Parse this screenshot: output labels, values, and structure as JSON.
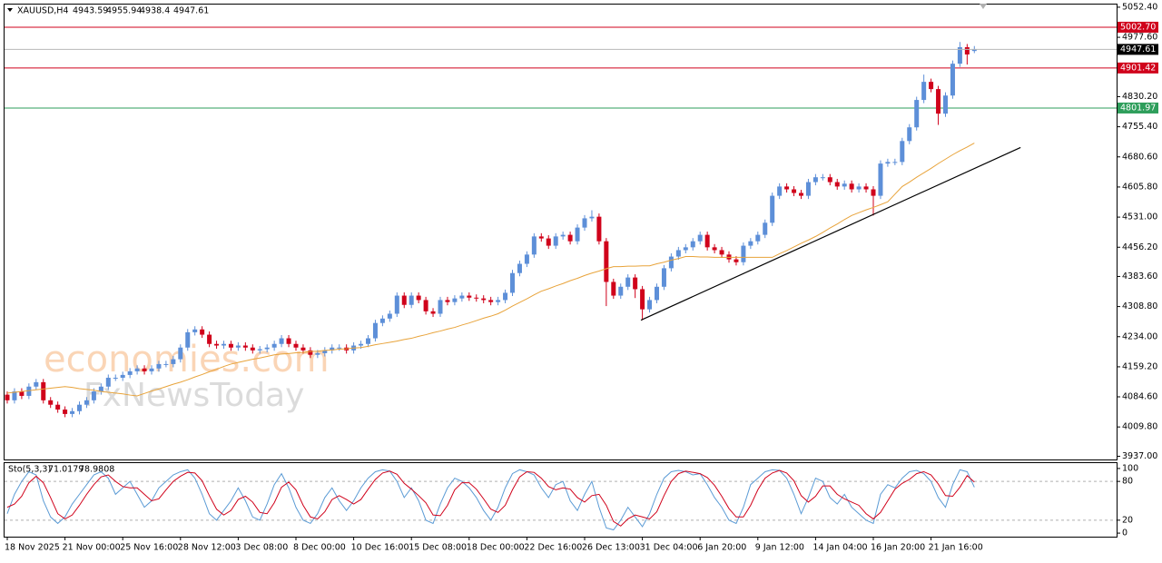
{
  "chart_data": [
    {
      "type": "candlestick",
      "title": "XAUUSD,H4",
      "categories": [
        "18 Nov 2025",
        null,
        null,
        null,
        null,
        null,
        null,
        null,
        "21 Nov 00:00",
        null,
        null,
        null,
        null,
        null,
        null,
        null,
        "25 Nov 16:00",
        null,
        null,
        null,
        null,
        null,
        null,
        null,
        "28 Nov 12:00",
        null,
        null,
        null,
        null,
        null,
        null,
        null,
        "3 Dec 08:00",
        null,
        null,
        null,
        null,
        null,
        null,
        null,
        "8 Dec 00:00",
        null,
        null,
        null,
        null,
        null,
        null,
        null,
        "10 Dec 16:00",
        null,
        null,
        null,
        null,
        null,
        null,
        null,
        "15 Dec 08:00",
        null,
        null,
        null,
        null,
        null,
        null,
        null,
        "18 Dec 00:00",
        null,
        null,
        null,
        null,
        null,
        null,
        null,
        "22 Dec 16:00",
        null,
        null,
        null,
        null,
        null,
        null,
        null,
        "26 Dec 13:00",
        null,
        null,
        null,
        null,
        null,
        null,
        null,
        "31 Dec 04:00",
        null,
        null,
        null,
        null,
        null,
        null,
        null,
        "6 Jan 20:00",
        null,
        null,
        null,
        null,
        null,
        null,
        null,
        "9 Jan 12:00",
        null,
        null,
        null,
        null,
        null,
        null,
        null,
        "14 Jan 04:00",
        null,
        null,
        null,
        null,
        null,
        null,
        null,
        "16 Jan 20:00",
        null,
        null,
        null,
        null,
        null,
        null,
        null,
        "21 Jan 16:00",
        null,
        null,
        null,
        null,
        null,
        null
      ],
      "open": [
        4090,
        4076,
        4098,
        4087,
        4110,
        4121,
        4076,
        4065,
        4053,
        4042,
        4049,
        4065,
        4076,
        4098,
        4110,
        4132,
        4132,
        4139,
        4148,
        4155,
        4148,
        4155,
        4166,
        4166,
        4178,
        4207,
        4245,
        4252,
        4239,
        4216,
        4212,
        4216,
        4207,
        4212,
        4207,
        4200,
        4203,
        4207,
        4216,
        4230,
        4216,
        4207,
        4200,
        4189,
        4193,
        4200,
        4207,
        4207,
        4200,
        4212,
        4216,
        4230,
        4268,
        4279,
        4291,
        4336,
        4313,
        4336,
        4325,
        4297,
        4291,
        4325,
        4320,
        4329,
        4336,
        4331,
        4329,
        4325,
        4320,
        4325,
        4343,
        4392,
        4415,
        4438,
        4483,
        4478,
        4460,
        4483,
        4487,
        4471,
        4505,
        4528,
        4532,
        4471,
        4370,
        4336,
        4358,
        4381,
        4352,
        4302,
        4325,
        4358,
        4404,
        4433,
        4449,
        4456,
        4471,
        4487,
        4456,
        4449,
        4438,
        4426,
        4419,
        4460,
        4471,
        4487,
        4517,
        4584,
        4607,
        4600,
        4591,
        4584,
        4618,
        4630,
        4630,
        4618,
        4607,
        4614,
        4600,
        4607,
        4600,
        4584,
        4664,
        4668,
        4668,
        4720,
        4754,
        4822,
        4867,
        4849,
        4788,
        4833,
        4912,
        4953,
        4943.59
      ],
      "high": [
        4098,
        4106,
        4106,
        4118,
        4129,
        4129,
        4084,
        4073,
        4061,
        4057,
        4073,
        4084,
        4106,
        4118,
        4140,
        4140,
        4147,
        4156,
        4163,
        4163,
        4163,
        4174,
        4174,
        4186,
        4215,
        4253,
        4260,
        4260,
        4247,
        4224,
        4224,
        4224,
        4220,
        4220,
        4215,
        4211,
        4215,
        4224,
        4238,
        4238,
        4224,
        4215,
        4208,
        4201,
        4208,
        4215,
        4215,
        4215,
        4220,
        4224,
        4238,
        4276,
        4287,
        4299,
        4344,
        4344,
        4344,
        4344,
        4333,
        4305,
        4333,
        4333,
        4337,
        4344,
        4344,
        4339,
        4337,
        4333,
        4333,
        4351,
        4400,
        4423,
        4446,
        4491,
        4491,
        4486,
        4491,
        4495,
        4495,
        4513,
        4536,
        4548,
        4540,
        4479,
        4378,
        4366,
        4389,
        4389,
        4360,
        4333,
        4366,
        4412,
        4441,
        4457,
        4464,
        4479,
        4495,
        4495,
        4464,
        4457,
        4446,
        4434,
        4468,
        4479,
        4495,
        4525,
        4592,
        4615,
        4615,
        4608,
        4599,
        4626,
        4638,
        4638,
        4638,
        4626,
        4622,
        4622,
        4615,
        4615,
        4608,
        4672,
        4676,
        4676,
        4728,
        4762,
        4830,
        4885,
        4875,
        4857,
        4841,
        4920,
        4966,
        4961,
        4955.94
      ],
      "low": [
        4068,
        4068,
        4079,
        4079,
        4102,
        4068,
        4057,
        4045,
        4034,
        4034,
        4041,
        4057,
        4068,
        4090,
        4102,
        4124,
        4124,
        4131,
        4140,
        4140,
        4140,
        4147,
        4158,
        4158,
        4170,
        4199,
        4237,
        4231,
        4208,
        4204,
        4204,
        4199,
        4199,
        4199,
        4192,
        4192,
        4195,
        4199,
        4208,
        4208,
        4199,
        4192,
        4181,
        4181,
        4185,
        4192,
        4199,
        4192,
        4192,
        4204,
        4208,
        4222,
        4260,
        4271,
        4283,
        4305,
        4305,
        4317,
        4289,
        4283,
        4283,
        4312,
        4312,
        4321,
        4323,
        4321,
        4317,
        4312,
        4312,
        4317,
        4335,
        4384,
        4407,
        4430,
        4470,
        4452,
        4452,
        4475,
        4463,
        4463,
        4497,
        4520,
        4463,
        4310,
        4328,
        4328,
        4350,
        4330,
        4275,
        4294,
        4317,
        4350,
        4396,
        4425,
        4441,
        4448,
        4463,
        4448,
        4441,
        4430,
        4418,
        4411,
        4411,
        4452,
        4463,
        4479,
        4509,
        4576,
        4592,
        4583,
        4576,
        4576,
        4610,
        4622,
        4610,
        4599,
        4599,
        4592,
        4592,
        4592,
        4535,
        4576,
        4656,
        4660,
        4660,
        4712,
        4746,
        4814,
        4841,
        4760,
        4780,
        4825,
        4904,
        4910,
        4938.4
      ],
      "close": [
        4076,
        4098,
        4087,
        4110,
        4121,
        4076,
        4065,
        4053,
        4042,
        4049,
        4065,
        4076,
        4098,
        4110,
        4132,
        4132,
        4139,
        4148,
        4155,
        4148,
        4155,
        4166,
        4166,
        4178,
        4207,
        4245,
        4252,
        4239,
        4216,
        4212,
        4216,
        4207,
        4212,
        4207,
        4200,
        4203,
        4207,
        4216,
        4230,
        4216,
        4207,
        4200,
        4189,
        4193,
        4200,
        4207,
        4207,
        4200,
        4212,
        4216,
        4230,
        4268,
        4279,
        4291,
        4336,
        4313,
        4336,
        4325,
        4297,
        4291,
        4325,
        4320,
        4329,
        4336,
        4331,
        4329,
        4325,
        4320,
        4325,
        4343,
        4392,
        4415,
        4438,
        4483,
        4478,
        4460,
        4483,
        4487,
        4471,
        4505,
        4528,
        4532,
        4471,
        4370,
        4336,
        4358,
        4381,
        4352,
        4302,
        4325,
        4358,
        4404,
        4433,
        4449,
        4456,
        4471,
        4487,
        4456,
        4449,
        4438,
        4426,
        4419,
        4460,
        4471,
        4487,
        4517,
        4584,
        4607,
        4600,
        4591,
        4584,
        4618,
        4630,
        4630,
        4618,
        4607,
        4614,
        4600,
        4607,
        4600,
        4584,
        4664,
        4668,
        4668,
        4720,
        4754,
        4822,
        4867,
        4849,
        4788,
        4833,
        4912,
        4953,
        4935,
        4947.61
      ],
      "ma": [
        4094,
        4096,
        4098,
        4100,
        4102,
        4104,
        4106,
        4108,
        4110,
        4108,
        4105,
        4103,
        4101,
        4098,
        4096,
        4094,
        4092,
        4089,
        4087,
        4093,
        4099,
        4104,
        4110,
        4116,
        4121,
        4127,
        4134,
        4140,
        4147,
        4153,
        4160,
        4166,
        4170,
        4174,
        4178,
        4181,
        4185,
        4189,
        4191,
        4192,
        4194,
        4195,
        4197,
        4198,
        4200,
        4201,
        4203,
        4204,
        4206,
        4207,
        4210,
        4214,
        4217,
        4220,
        4223,
        4227,
        4230,
        4235,
        4239,
        4244,
        4248,
        4253,
        4257,
        4263,
        4268,
        4274,
        4280,
        4285,
        4291,
        4300,
        4310,
        4319,
        4328,
        4338,
        4347,
        4353,
        4360,
        4366,
        4373,
        4379,
        4386,
        4392,
        4397,
        4403,
        4408,
        4408,
        4409,
        4409,
        4410,
        4410,
        4415,
        4419,
        4424,
        4428,
        4433,
        4433,
        4432,
        4432,
        4431,
        4431,
        4431,
        4431,
        4431,
        4431,
        4431,
        4431,
        4431,
        4440,
        4448,
        4457,
        4466,
        4474,
        4483,
        4493,
        4504,
        4514,
        4525,
        4535,
        4542,
        4549,
        4555,
        4562,
        4569,
        4588,
        4607,
        4618,
        4630,
        4641,
        4652,
        4664,
        4675,
        4686,
        4696,
        4705,
        4715
      ],
      "ma_color": "#e8a33a",
      "up_color": "#5d8fd8",
      "down_color": "#d0021b",
      "levels": [
        {
          "value": 5002.7,
          "label": "5002.70",
          "color": "#d0021b"
        },
        {
          "value": 4901.42,
          "label": "4901.42",
          "color": "#d0021b"
        },
        {
          "value": 4801.97,
          "label": "4801.97",
          "color": "#2e9e5b"
        }
      ],
      "trendline": {
        "start": [
          87.8,
          4275
        ],
        "end": [
          140.4,
          4704
        ]
      },
      "ylim": [
        3929,
        5059
      ],
      "yticks": [
        {
          "value": 3937,
          "label": "3937.00"
        },
        {
          "value": 4009.8,
          "label": "4009.80"
        },
        {
          "value": 4084.6,
          "label": "4084.60"
        },
        {
          "value": 4159.2,
          "label": "4159.20"
        },
        {
          "value": 4234,
          "label": "4234.00"
        },
        {
          "value": 4308.8,
          "label": "4308.80"
        },
        {
          "value": 4383.6,
          "label": "4383.60"
        },
        {
          "value": 4456.2,
          "label": "4456.20"
        },
        {
          "value": 4531,
          "label": "4531.00"
        },
        {
          "value": 4605.8,
          "label": "4605.80"
        },
        {
          "value": 4680.6,
          "label": "4680.60"
        },
        {
          "value": 4755.4,
          "label": "4755.40"
        },
        {
          "value": 4830.2,
          "label": "4830.20"
        },
        {
          "value": 4977.6,
          "label": "4977.60"
        },
        {
          "value": 5052.4,
          "label": "5052.40"
        }
      ]
    },
    {
      "type": "line",
      "title": "Sto(5,3,3)",
      "series": [
        {
          "color": "#5b9bd5",
          "values": [
            30,
            60,
            80,
            95,
            90,
            50,
            25,
            15,
            25,
            45,
            60,
            75,
            90,
            95,
            85,
            60,
            70,
            80,
            60,
            40,
            50,
            70,
            80,
            90,
            95,
            98,
            85,
            60,
            30,
            20,
            35,
            50,
            70,
            50,
            25,
            20,
            45,
            75,
            92,
            70,
            40,
            20,
            15,
            30,
            55,
            70,
            50,
            35,
            50,
            70,
            85,
            95,
            98,
            96,
            80,
            55,
            70,
            50,
            20,
            15,
            45,
            70,
            85,
            80,
            70,
            55,
            35,
            20,
            40,
            70,
            92,
            98,
            95,
            90,
            70,
            55,
            75,
            80,
            50,
            35,
            60,
            80,
            40,
            8,
            5,
            20,
            40,
            25,
            10,
            30,
            60,
            85,
            95,
            97,
            95,
            90,
            92,
            75,
            55,
            40,
            20,
            15,
            40,
            75,
            85,
            95,
            98,
            97,
            85,
            60,
            30,
            55,
            85,
            80,
            55,
            45,
            60,
            40,
            30,
            20,
            15,
            60,
            75,
            70,
            85,
            95,
            97,
            92,
            80,
            55,
            40,
            75,
            98,
            95,
            71.0179
          ]
        },
        {
          "color": "#d0021b",
          "values": [
            40,
            45,
            57,
            78,
            88,
            78,
            55,
            30,
            22,
            28,
            43,
            60,
            75,
            87,
            90,
            80,
            72,
            70,
            70,
            60,
            50,
            53,
            67,
            80,
            88,
            94,
            93,
            81,
            58,
            37,
            28,
            35,
            52,
            57,
            48,
            32,
            30,
            47,
            71,
            79,
            67,
            43,
            25,
            22,
            33,
            52,
            58,
            52,
            45,
            52,
            68,
            83,
            93,
            96,
            91,
            77,
            68,
            58,
            47,
            28,
            27,
            43,
            67,
            78,
            78,
            68,
            53,
            37,
            32,
            43,
            67,
            87,
            95,
            94,
            85,
            72,
            67,
            70,
            68,
            55,
            48,
            58,
            60,
            43,
            18,
            11,
            22,
            28,
            25,
            22,
            33,
            58,
            80,
            92,
            96,
            94,
            92,
            86,
            74,
            57,
            38,
            25,
            25,
            43,
            67,
            85,
            93,
            97,
            93,
            81,
            58,
            48,
            57,
            73,
            73,
            60,
            53,
            48,
            43,
            30,
            22,
            32,
            50,
            68,
            77,
            83,
            92,
            95,
            90,
            76,
            58,
            57,
            71,
            89,
            78.9808
          ]
        }
      ],
      "ylim": [
        -5.5,
        108.3
      ],
      "yticks": [
        0,
        20,
        80,
        100
      ],
      "dashed_levels": [
        20,
        80
      ]
    }
  ],
  "watermarks": [
    "economies.com",
    "FxNewsToday"
  ]
}
